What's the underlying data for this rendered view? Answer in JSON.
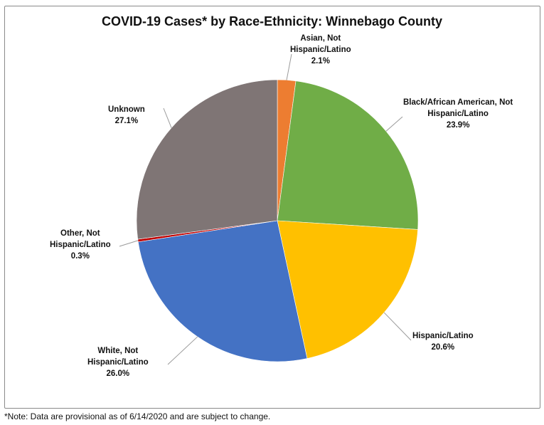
{
  "chart_data": {
    "type": "pie",
    "title": "COVID-19 Cases* by Race-Ethnicity: Winnebago County",
    "slices": [
      {
        "label_lines": [
          "Asian, Not",
          "Hispanic/Latino"
        ],
        "pct_label": "2.1%",
        "value": 2.1,
        "color": "#ED7D31"
      },
      {
        "label_lines": [
          "Black/African American, Not",
          "Hispanic/Latino"
        ],
        "pct_label": "23.9%",
        "value": 23.9,
        "color": "#70AD47"
      },
      {
        "label_lines": [
          "Hispanic/Latino"
        ],
        "pct_label": "20.6%",
        "value": 20.6,
        "color": "#FFC000"
      },
      {
        "label_lines": [
          "White, Not",
          "Hispanic/Latino"
        ],
        "pct_label": "26.0%",
        "value": 26.0,
        "color": "#4472C4"
      },
      {
        "label_lines": [
          "Other, Not",
          "Hispanic/Latino"
        ],
        "pct_label": "0.3%",
        "value": 0.3,
        "color": "#C00000"
      },
      {
        "label_lines": [
          "Unknown"
        ],
        "pct_label": "27.1%",
        "value": 27.1,
        "color": "#7F7575"
      }
    ],
    "legend": "none"
  },
  "note": "*Note: Data are provisional as of 6/14/2020 and are subject to change."
}
